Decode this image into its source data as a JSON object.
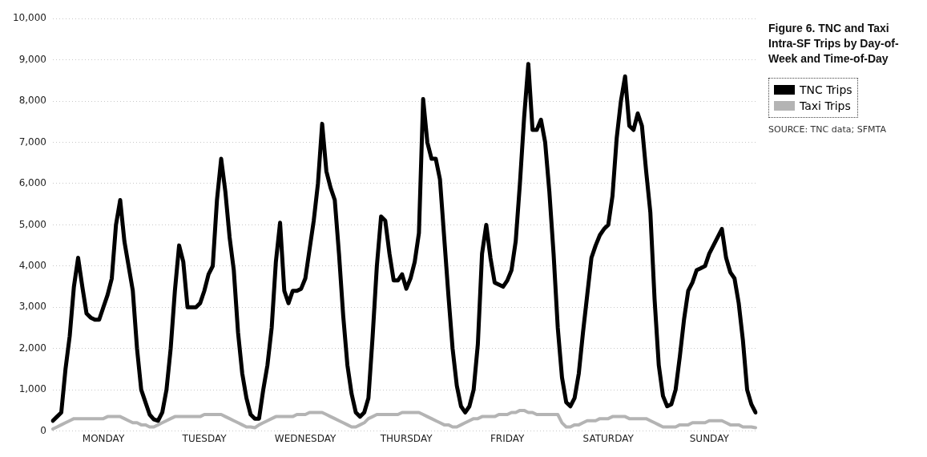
{
  "chart_data": {
    "type": "line",
    "title": "Figure 6. TNC and Taxi Intra-SF Trips by Day-of-Week and Time-of-Day",
    "annotations": [
      "SOURCE: TNC data; SFMTA"
    ],
    "categories": [
      null,
      null,
      null,
      null,
      null,
      null,
      null,
      null,
      null,
      null,
      null,
      null,
      "MONDAY",
      null,
      null,
      null,
      null,
      null,
      null,
      null,
      null,
      null,
      null,
      null,
      null,
      null,
      null,
      null,
      null,
      null,
      null,
      null,
      null,
      null,
      null,
      null,
      "TUESDAY",
      null,
      null,
      null,
      null,
      null,
      null,
      null,
      null,
      null,
      null,
      null,
      null,
      null,
      null,
      null,
      null,
      null,
      null,
      null,
      null,
      null,
      null,
      null,
      "WEDNESDAY",
      null,
      null,
      null,
      null,
      null,
      null,
      null,
      null,
      null,
      null,
      null,
      null,
      null,
      null,
      null,
      null,
      null,
      null,
      null,
      null,
      null,
      null,
      null,
      "THURSDAY",
      null,
      null,
      null,
      null,
      null,
      null,
      null,
      null,
      null,
      null,
      null,
      null,
      null,
      null,
      null,
      null,
      null,
      null,
      null,
      null,
      null,
      null,
      null,
      "FRIDAY",
      null,
      null,
      null,
      null,
      null,
      null,
      null,
      null,
      null,
      null,
      null,
      null,
      null,
      null,
      null,
      null,
      null,
      null,
      null,
      null,
      null,
      null,
      null,
      "SATURDAY",
      null,
      null,
      null,
      null,
      null,
      null,
      null,
      null,
      null,
      null,
      null,
      null,
      null,
      null,
      null,
      null,
      null,
      null,
      null,
      null,
      null,
      null,
      null,
      "SUNDAY",
      null,
      null,
      null,
      null,
      null,
      null,
      null,
      null,
      null,
      null,
      null
    ],
    "ylim": [
      0,
      10000
    ],
    "yticks": [
      0,
      {
        "value": 1000,
        "label": "1,000"
      },
      {
        "value": 2000,
        "label": "2,000"
      },
      {
        "value": 3000,
        "label": "3,000"
      },
      {
        "value": 4000,
        "label": "4,000"
      },
      {
        "value": 5000,
        "label": "5,000"
      },
      {
        "value": 6000,
        "label": "6,000"
      },
      {
        "value": 7000,
        "label": "7,000"
      },
      {
        "value": 8000,
        "label": "8,000"
      },
      {
        "value": 9000,
        "label": "9,000"
      },
      {
        "value": 10000,
        "label": "10,000"
      }
    ],
    "grid": "y",
    "legend": "right",
    "line_style": "solid",
    "marker": "none",
    "series": [
      {
        "name": "TNC Trips",
        "color": "#000000",
        "values": [
          250,
          350,
          450,
          1500,
          2300,
          3500,
          4200,
          3500,
          2850,
          2750,
          2700,
          2700,
          3000,
          3300,
          3700,
          5000,
          5600,
          4600,
          4000,
          3400,
          2000,
          1000,
          700,
          400,
          280,
          250,
          450,
          1000,
          2000,
          3400,
          4500,
          4100,
          3000,
          3000,
          3000,
          3100,
          3400,
          3800,
          4000,
          5600,
          6600,
          5800,
          4700,
          3900,
          2400,
          1400,
          800,
          400,
          300,
          300,
          1000,
          1600,
          2500,
          4100,
          5050,
          3400,
          3100,
          3400,
          3400,
          3450,
          3700,
          4400,
          5100,
          6000,
          7450,
          6300,
          5900,
          5600,
          4300,
          2800,
          1600,
          900,
          450,
          350,
          450,
          800,
          2300,
          4000,
          5200,
          5100,
          4300,
          3650,
          3650,
          3800,
          3450,
          3700,
          4100,
          4800,
          8050,
          7000,
          6600,
          6600,
          6100,
          4700,
          3300,
          2000,
          1100,
          600,
          450,
          600,
          1000,
          2100,
          4300,
          5000,
          4200,
          3600,
          3550,
          3500,
          3650,
          3900,
          4600,
          6000,
          7600,
          8900,
          7300,
          7300,
          7550,
          7000,
          5800,
          4300,
          2500,
          1300,
          700,
          600,
          800,
          1400,
          2400,
          3300,
          4200,
          4500,
          4750,
          4900,
          5000,
          5700,
          7100,
          8000,
          8600,
          7400,
          7300,
          7700,
          7400,
          6300,
          5300,
          3200,
          1600,
          850,
          600,
          650,
          1000,
          1800,
          2700,
          3400,
          3600,
          3900,
          3950,
          4000,
          4300,
          4500,
          4700,
          4900,
          4200,
          3850,
          3700,
          3100,
          2200,
          1000,
          650,
          450
        ]
      },
      {
        "name": "Taxi Trips",
        "color": "#b4b4b4",
        "values": [
          50,
          100,
          150,
          200,
          250,
          300,
          300,
          300,
          300,
          300,
          300,
          300,
          300,
          350,
          350,
          350,
          350,
          300,
          250,
          200,
          200,
          150,
          150,
          100,
          100,
          150,
          200,
          250,
          300,
          350,
          350,
          350,
          350,
          350,
          350,
          350,
          400,
          400,
          400,
          400,
          400,
          350,
          300,
          250,
          200,
          150,
          100,
          100,
          80,
          150,
          200,
          250,
          300,
          350,
          350,
          350,
          350,
          350,
          400,
          400,
          400,
          450,
          450,
          450,
          450,
          400,
          350,
          300,
          250,
          200,
          150,
          100,
          100,
          150,
          200,
          300,
          350,
          400,
          400,
          400,
          400,
          400,
          400,
          450,
          450,
          450,
          450,
          450,
          400,
          350,
          300,
          250,
          200,
          150,
          150,
          100,
          100,
          150,
          200,
          250,
          300,
          300,
          350,
          350,
          350,
          350,
          400,
          400,
          400,
          450,
          450,
          500,
          500,
          450,
          450,
          400,
          400,
          400,
          400,
          400,
          400,
          200,
          100,
          100,
          150,
          150,
          200,
          250,
          250,
          250,
          300,
          300,
          300,
          350,
          350,
          350,
          350,
          300,
          300,
          300,
          300,
          300,
          250,
          200,
          150,
          100,
          100,
          100,
          100,
          150,
          150,
          150,
          200,
          200,
          200,
          200,
          250,
          250,
          250,
          250,
          200,
          150,
          150,
          150,
          100,
          100,
          100,
          80
        ]
      }
    ]
  }
}
